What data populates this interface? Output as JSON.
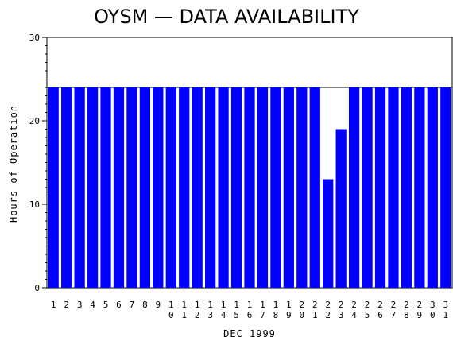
{
  "chart_data": {
    "type": "bar",
    "title": "OYSM — DATA AVAILABILITY",
    "xlabel": "DEC 1999",
    "ylabel": "Hours of Operation",
    "ylim": [
      0,
      30
    ],
    "yticks": [
      0,
      10,
      20,
      30
    ],
    "ytick_labels": [
      "0",
      "10",
      "20",
      "30"
    ],
    "reference_line": 24,
    "bar_color": "#0000ff",
    "grid": false,
    "categories": [
      "1",
      "2",
      "3",
      "4",
      "5",
      "6",
      "7",
      "8",
      "9",
      "10",
      "11",
      "12",
      "13",
      "14",
      "15",
      "16",
      "17",
      "18",
      "19",
      "20",
      "21",
      "22",
      "23",
      "24",
      "25",
      "26",
      "27",
      "28",
      "29",
      "30",
      "31"
    ],
    "values": [
      24,
      24,
      24,
      24,
      24,
      24,
      24,
      24,
      24,
      24,
      24,
      24,
      24,
      24,
      24,
      24,
      24,
      24,
      24,
      24,
      24,
      13,
      19,
      24,
      24,
      24,
      24,
      24,
      24,
      24,
      24
    ]
  }
}
